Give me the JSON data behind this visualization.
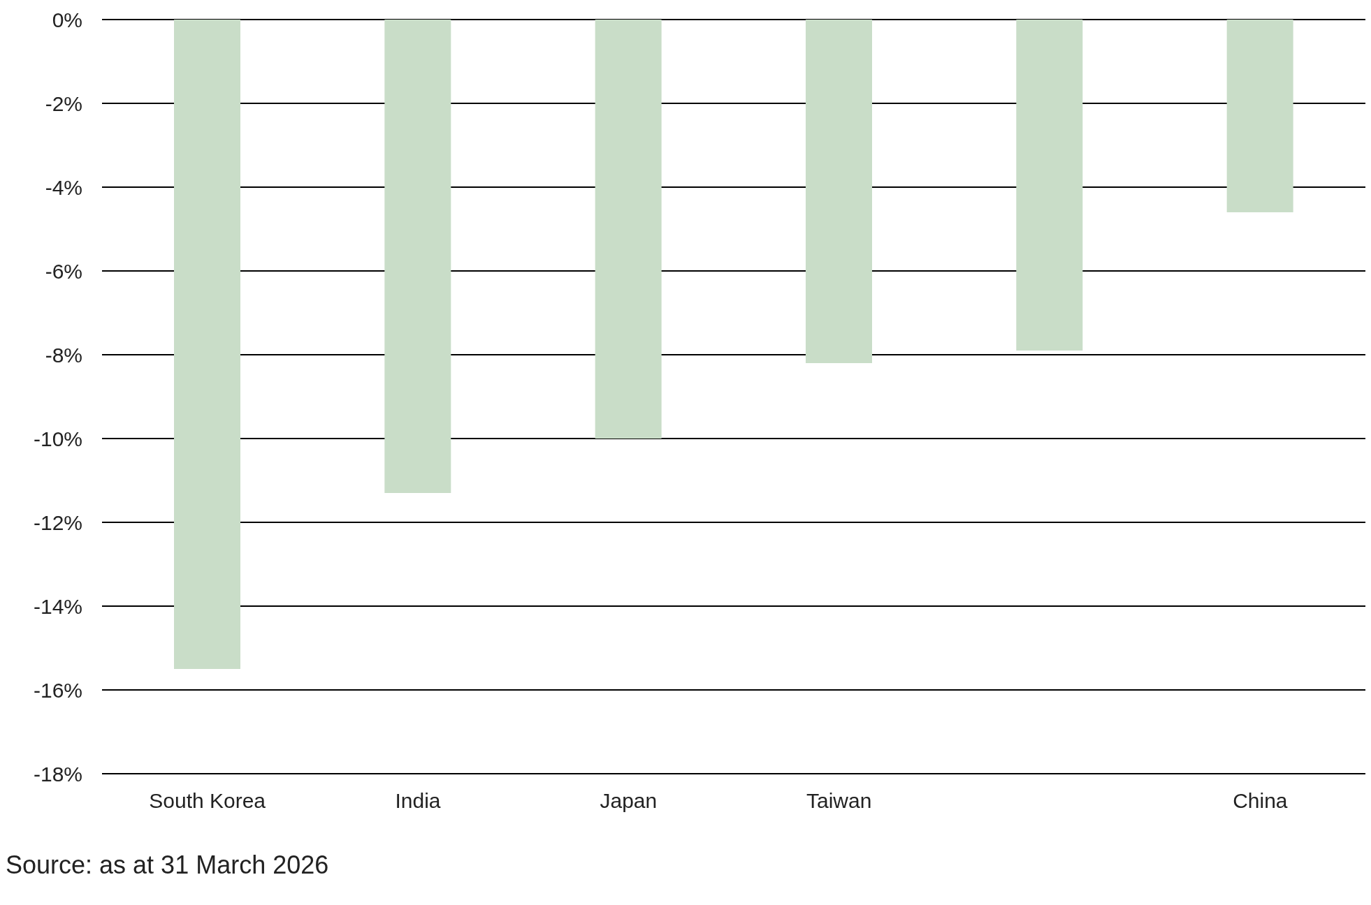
{
  "chart_data": {
    "type": "bar",
    "categories": [
      "South Korea",
      "India",
      "Japan",
      "Taiwan",
      null,
      "China"
    ],
    "values": [
      -15.5,
      -11.3,
      -10.0,
      -8.2,
      -7.9,
      -4.6
    ],
    "color": "#c9ddc8",
    "ylim": [
      -18,
      0
    ],
    "yticks": [
      {
        "value": 0,
        "label": "0%"
      },
      {
        "value": -2,
        "label": "-2%"
      },
      {
        "value": -4,
        "label": "-4%"
      },
      {
        "value": -6,
        "label": "-6%"
      },
      {
        "value": -8,
        "label": "-8%"
      },
      {
        "value": -10,
        "label": "-10%"
      },
      {
        "value": -12,
        "label": "-12%"
      },
      {
        "value": -14,
        "label": "-14%"
      },
      {
        "value": -16,
        "label": "-16%"
      },
      {
        "value": -18,
        "label": "-18%"
      }
    ],
    "grid": "y",
    "annotations": [
      "Source: as at 31 March 2026"
    ]
  }
}
